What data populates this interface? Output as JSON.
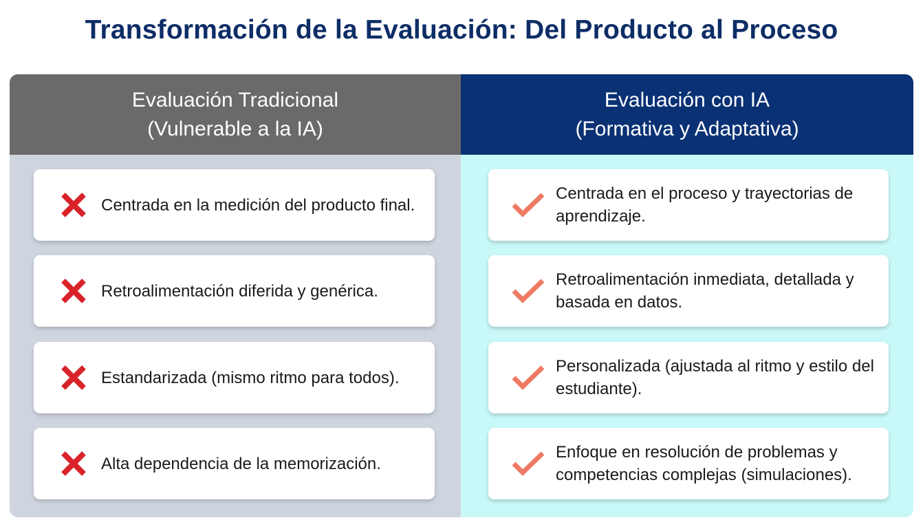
{
  "title": "Transformación de la Evaluación: Del Producto al Proceso",
  "colors": {
    "title": "#0d2d66",
    "left_header": "#6a6a6a",
    "left_body": "#cfd5df",
    "right_header": "#0a3174",
    "right_body": "#c9f8f8",
    "cross": "#d9232a",
    "check": "#ee7a63"
  },
  "left": {
    "heading_line1": "Evaluación Tradicional",
    "heading_line2": "(Vulnerable a la IA)",
    "icon": "cross-icon",
    "items": [
      "Centrada en la medición del producto final.",
      "Retroalimentación diferida y genérica.",
      "Estandarizada (mismo ritmo para todos).",
      "Alta dependencia de la memorización."
    ]
  },
  "right": {
    "heading_line1": "Evaluación con IA",
    "heading_line2": "(Formativa y Adaptativa)",
    "icon": "check-icon",
    "items": [
      "Centrada en el proceso y trayectorias de aprendizaje.",
      "Retroalimentación inmediata, detallada y basada en datos.",
      "Personalizada (ajustada al ritmo y estilo del estudiante).",
      "Enfoque en resolución de problemas y competencias complejas (simulaciones)."
    ]
  }
}
